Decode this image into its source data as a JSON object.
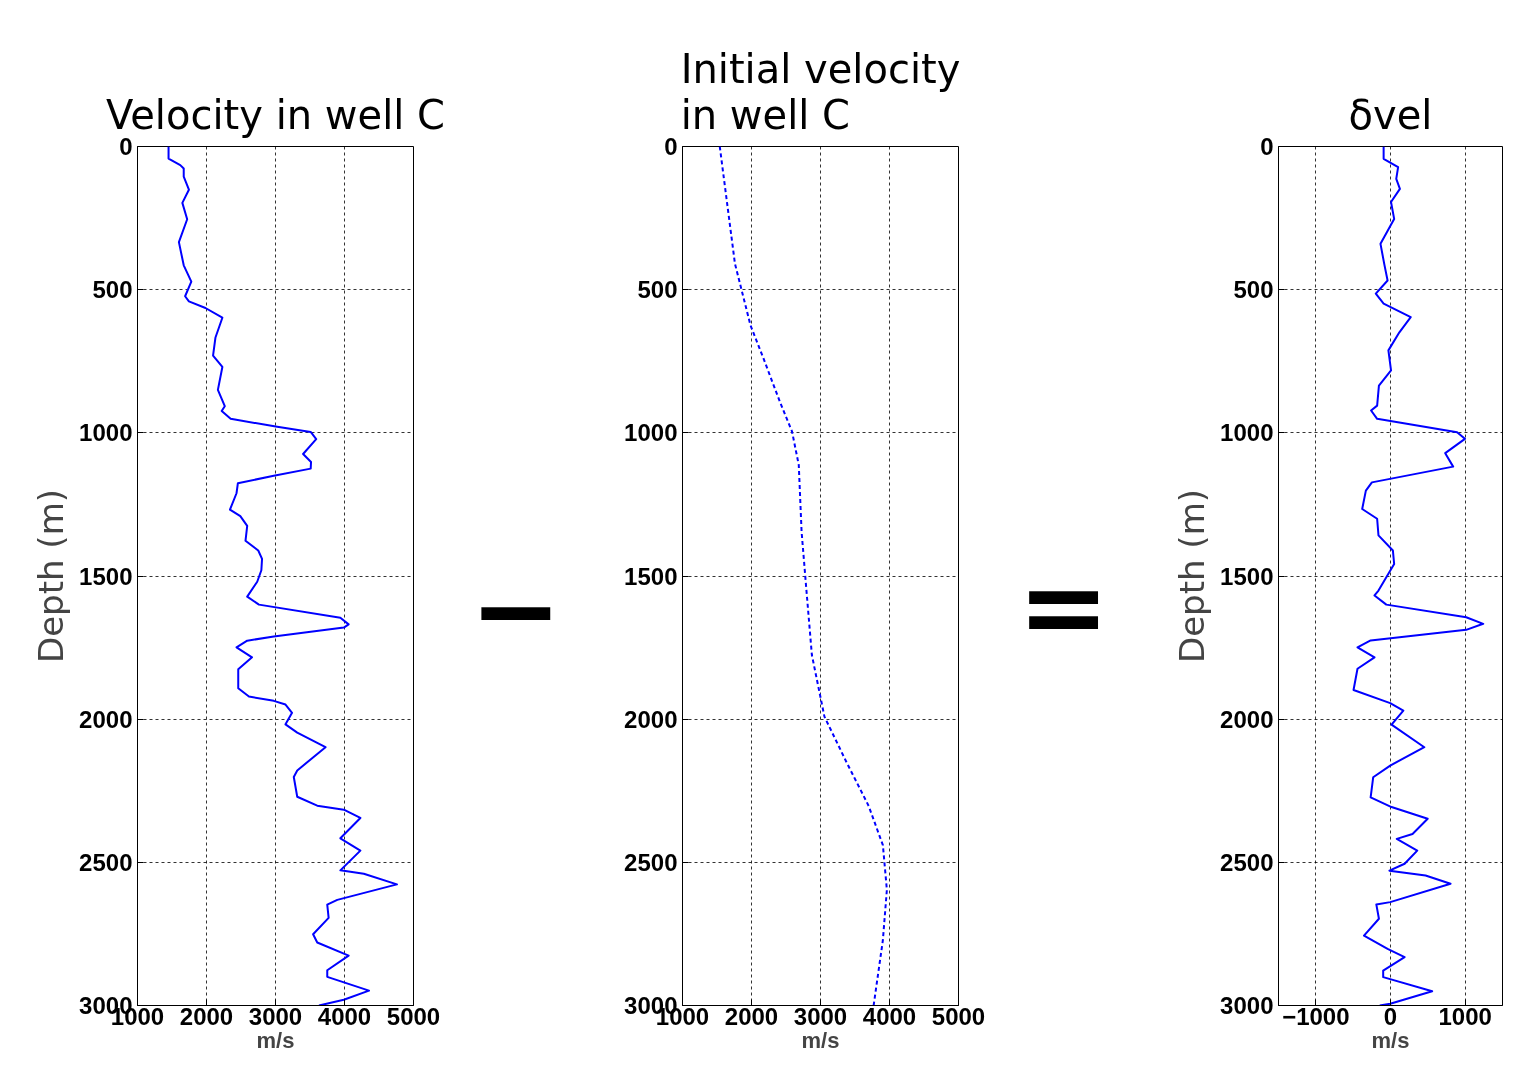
{
  "chart_data": [
    {
      "type": "line",
      "title": "Velocity in well C",
      "xlabel": "m/s",
      "ylabel": "Depth (m)",
      "xlim": [
        1000,
        5000
      ],
      "xticks": [
        1000,
        2000,
        3000,
        4000,
        5000
      ],
      "ylim": [
        3000,
        0
      ],
      "yticks": [
        0,
        500,
        1000,
        1500,
        2000,
        2500,
        3000
      ],
      "grid": true,
      "annotations": [
        "−"
      ],
      "series": [
        {
          "color": "#0000ff",
          "line_style": "solid",
          "x": [
            1450,
            1450,
            1620,
            1670,
            1670,
            1745,
            1650,
            1720,
            1600,
            1670,
            1780,
            1690,
            1745,
            1985,
            2230,
            2130,
            2095,
            2230,
            2165,
            2265,
            2220,
            2350,
            3025,
            3510,
            3590,
            3400,
            3515,
            3510,
            2975,
            2455,
            2435,
            2340,
            2490,
            2590,
            2565,
            2750,
            2805,
            2795,
            2735,
            2590,
            2760,
            3940,
            4060,
            3990,
            2975,
            2590,
            2435,
            2660,
            2460,
            2460,
            2615,
            2975,
            3145,
            3240,
            3145,
            3315,
            3725,
            3315,
            3265,
            3315,
            3605,
            3990,
            4230,
            3940,
            4230,
            3940,
            4280,
            4760,
            3895,
            3750,
            3770,
            3545,
            3605,
            4060,
            3750,
            3750,
            4355,
            3990,
            3630
          ],
          "values": [
            0,
            42,
            65,
            77,
            105,
            151,
            197,
            254,
            334,
            415,
            472,
            523,
            541,
            564,
            598,
            667,
            730,
            770,
            850,
            907,
            924,
            951,
            979,
            997,
            1022,
            1074,
            1102,
            1125,
            1150,
            1176,
            1211,
            1268,
            1291,
            1325,
            1377,
            1411,
            1440,
            1480,
            1520,
            1572,
            1600,
            1646,
            1669,
            1680,
            1711,
            1726,
            1749,
            1784,
            1826,
            1892,
            1921,
            1936,
            1949,
            1978,
            2018,
            2047,
            2098,
            2179,
            2202,
            2271,
            2302,
            2316,
            2345,
            2416,
            2459,
            2528,
            2540,
            2577,
            2631,
            2648,
            2694,
            2751,
            2780,
            2826,
            2877,
            2900,
            2948,
            2980,
            3000
          ]
        }
      ]
    },
    {
      "type": "line",
      "title": "Initial velocity\nin well C",
      "xlabel": "m/s",
      "xlim": [
        1000,
        5000
      ],
      "xticks": [
        1000,
        2000,
        3000,
        4000,
        5000
      ],
      "ylim": [
        3000,
        0
      ],
      "yticks": [
        0,
        500,
        1000,
        1500,
        2000,
        2500,
        3000
      ],
      "grid": true,
      "annotations": [
        "="
      ],
      "series": [
        {
          "color": "#0000ff",
          "line_style": "dashed",
          "x": [
            1540,
            1655,
            1760,
            1985,
            2175,
            2420,
            2587,
            2685,
            2726,
            2793,
            2875,
            3057,
            3370,
            3698,
            3904,
            3962,
            3904,
            3770
          ],
          "values": [
            0,
            214,
            409,
            624,
            741,
            897,
            995,
            1112,
            1346,
            1541,
            1776,
            1991,
            2147,
            2303,
            2440,
            2596,
            2772,
            3000
          ]
        }
      ]
    },
    {
      "type": "line",
      "title": "δvel",
      "xlabel": "m/s",
      "ylabel": "Depth (m)",
      "xlim": [
        -1500,
        1500
      ],
      "xticks": [
        -1000,
        0,
        1000
      ],
      "ylim": [
        3000,
        0
      ],
      "yticks": [
        0,
        500,
        1000,
        1500,
        2000,
        2500,
        3000
      ],
      "grid": true,
      "series": [
        {
          "color": "#0000ff",
          "line_style": "solid",
          "x": [
            -92,
            -92,
            102,
            77,
            126,
            7,
            49,
            -134,
            -84,
            -39,
            -197,
            -92,
            271,
            119,
            -28,
            7,
            -155,
            -179,
            -260,
            -179,
            892,
            997,
            733,
            839,
            -249,
            -330,
            -379,
            -179,
            -161,
            32,
            49,
            -161,
            -214,
            -56,
            1014,
            1242,
            1014,
            -266,
            -442,
            -214,
            -442,
            -495,
            -4,
            172,
            14,
            453,
            -4,
            -232,
            -266,
            14,
            498,
            295,
            84,
            358,
            189,
            -14,
            470,
            804,
            -4,
            -190,
            -155,
            -355,
            -39,
            189,
            -98,
            -98,
            558,
            -4,
            -144
          ],
          "values": [
            0,
            43,
            72,
            113,
            148,
            194,
            253,
            340,
            410,
            468,
            514,
            549,
            596,
            649,
            712,
            782,
            835,
            905,
            922,
            951,
            998,
            1021,
            1071,
            1118,
            1173,
            1202,
            1266,
            1300,
            1358,
            1411,
            1458,
            1551,
            1568,
            1600,
            1644,
            1667,
            1688,
            1725,
            1749,
            1784,
            1824,
            1898,
            1944,
            1970,
            2019,
            2098,
            2162,
            2203,
            2273,
            2307,
            2348,
            2401,
            2418,
            2459,
            2505,
            2529,
            2546,
            2575,
            2639,
            2647,
            2697,
            2756,
            2802,
            2831,
            2878,
            2901,
            2950,
            2994,
            3000
          ]
        }
      ]
    }
  ]
}
